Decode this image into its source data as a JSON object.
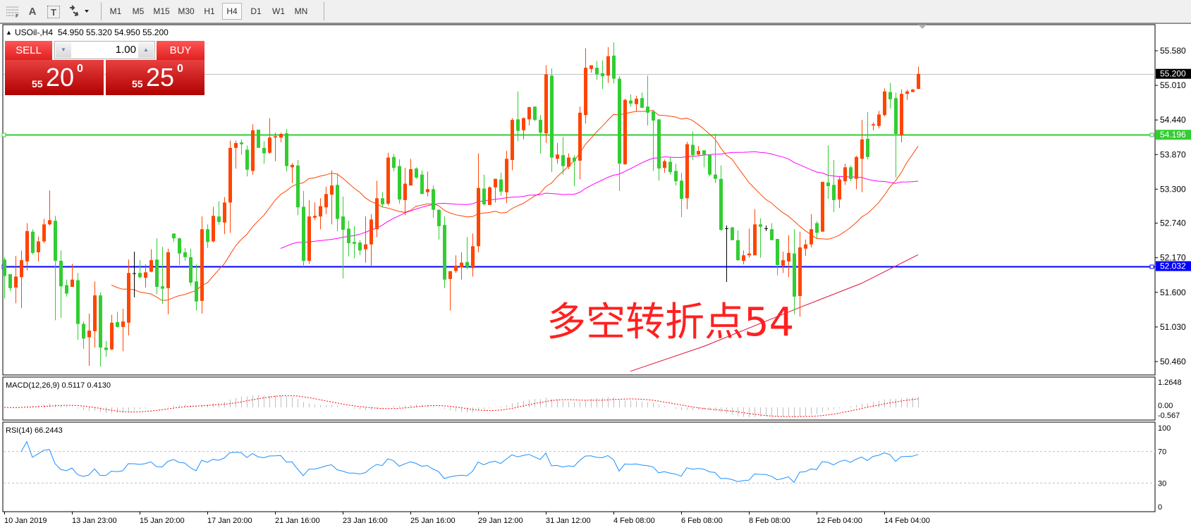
{
  "toolbar": {
    "tools": [
      {
        "icon": "fibonacci-lines-icon"
      },
      {
        "icon": "text-icon",
        "glyph": "A"
      },
      {
        "icon": "text-label-icon",
        "glyph": "T"
      },
      {
        "icon": "arrows-dropdown-icon"
      }
    ],
    "timeframes": [
      "M1",
      "M5",
      "M15",
      "M30",
      "H1",
      "H4",
      "D1",
      "W1",
      "MN"
    ],
    "active_timeframe": "H4"
  },
  "header": {
    "arrow": "▲",
    "symbol": "USOil-,H4",
    "ohlc": "54.950 55.320 54.950 55.200"
  },
  "trade_panel": {
    "sell_label": "SELL",
    "buy_label": "BUY",
    "lot": "1.00",
    "sell_price": {
      "big": "55",
      "main": "20",
      "sup": "0"
    },
    "buy_price": {
      "big": "55",
      "main": "25",
      "sup": "0"
    }
  },
  "annotation": "多空转折点54",
  "colors": {
    "up_candle": "#FF4500",
    "down_candle": "#32CD32",
    "doji": "#000000",
    "ma_fast": "#FF4500",
    "ma_slow": "#FF00FF",
    "ma_long": "#DC143C",
    "resistance_line": "#32CD32",
    "support_line": "#0000FF",
    "bid_line": "#C0C0C0",
    "rsi_line": "#1E90FF",
    "macd_hist": "#C0C0C0",
    "macd_signal": "#FF0000"
  },
  "chart_data": {
    "type": "candlestick",
    "symbol": "USOil-",
    "timeframe": "H4",
    "price_axis_ticks": [
      "55.580",
      "55.010",
      "54.440",
      "53.870",
      "53.300",
      "52.740",
      "52.170",
      "51.600",
      "51.030",
      "50.460"
    ],
    "price_range": [
      50.24,
      55.9
    ],
    "horizontal_lines": [
      {
        "name": "bid",
        "value": 55.2,
        "label": "55.200"
      },
      {
        "name": "resistance",
        "value": 54.196,
        "label": "54.196"
      },
      {
        "name": "support",
        "value": 52.032,
        "label": "52.032"
      }
    ],
    "time_labels": [
      "10 Jan 2019",
      "13 Jan 23:00",
      "15 Jan 20:00",
      "17 Jan 20:00",
      "21 Jan 16:00",
      "23 Jan 16:00",
      "25 Jan 16:00",
      "29 Jan 12:00",
      "31 Jan 12:00",
      "4 Feb 08:00",
      "6 Feb 08:00",
      "8 Feb 08:00",
      "12 Feb 04:00",
      "14 Feb 04:00"
    ],
    "ohlc": [
      [
        52.14,
        52.18,
        51.5,
        51.87
      ],
      [
        51.9,
        51.9,
        51.62,
        51.67
      ],
      [
        51.68,
        52.2,
        51.42,
        51.86
      ],
      [
        51.85,
        52.29,
        51.34,
        52.13
      ],
      [
        52.11,
        52.74,
        51.96,
        52.61
      ],
      [
        52.6,
        52.64,
        52.22,
        52.25
      ],
      [
        52.26,
        52.52,
        52.11,
        52.44
      ],
      [
        52.44,
        52.81,
        52.41,
        52.72
      ],
      [
        52.72,
        53.28,
        52.7,
        52.79
      ],
      [
        52.78,
        52.86,
        51.14,
        52.12
      ],
      [
        52.12,
        52.29,
        51.18,
        51.7
      ],
      [
        51.72,
        51.81,
        51.53,
        51.58
      ],
      [
        51.69,
        52.07,
        51.69,
        51.81
      ],
      [
        51.8,
        51.92,
        50.82,
        51.08
      ],
      [
        51.08,
        51.12,
        50.67,
        50.84
      ],
      [
        50.86,
        51.25,
        50.39,
        50.97
      ],
      [
        50.96,
        51.78,
        50.69,
        51.55
      ],
      [
        51.55,
        51.6,
        50.38,
        50.69
      ],
      [
        50.69,
        50.8,
        50.54,
        50.65
      ],
      [
        50.66,
        51.23,
        50.65,
        51.1
      ],
      [
        51.11,
        51.28,
        51.02,
        51.03
      ],
      [
        51.03,
        51.33,
        50.63,
        51.12
      ],
      [
        51.1,
        52.14,
        50.89,
        51.92
      ],
      [
        51.91,
        52.27,
        51.52,
        51.91
      ],
      [
        51.92,
        52.13,
        51.83,
        51.85
      ],
      [
        51.84,
        52.06,
        51.68,
        51.93
      ],
      [
        51.94,
        52.31,
        51.93,
        52.13
      ],
      [
        52.14,
        52.49,
        51.57,
        51.69
      ],
      [
        51.7,
        52.35,
        51.41,
        51.66
      ],
      [
        51.67,
        52.32,
        51.24,
        52.26
      ],
      [
        52.57,
        52.57,
        52.43,
        52.49
      ],
      [
        52.49,
        52.5,
        52.05,
        52.24
      ],
      [
        52.26,
        52.33,
        52.12,
        52.18
      ],
      [
        52.18,
        52.32,
        51.71,
        51.76
      ],
      [
        51.78,
        52.06,
        51.3,
        51.45
      ],
      [
        51.46,
        52.85,
        51.25,
        52.64
      ],
      [
        52.64,
        52.72,
        52.33,
        52.43
      ],
      [
        52.44,
        53.01,
        52.42,
        52.86
      ],
      [
        52.85,
        53.1,
        52.71,
        52.76
      ],
      [
        52.75,
        53.17,
        52.56,
        53.08
      ],
      [
        53.08,
        54.1,
        52.58,
        53.98
      ],
      [
        53.98,
        54.1,
        53.64,
        54.06
      ],
      [
        54.07,
        54.12,
        53.87,
        54.04
      ],
      [
        53.95,
        54.02,
        53.51,
        53.62
      ],
      [
        53.6,
        54.37,
        53.54,
        54.27
      ],
      [
        54.28,
        54.28,
        53.98,
        53.98
      ],
      [
        53.98,
        54.09,
        53.72,
        53.89
      ],
      [
        53.9,
        54.47,
        53.88,
        54.15
      ],
      [
        54.15,
        54.23,
        53.76,
        54.17
      ],
      [
        54.15,
        54.23,
        54.07,
        54.21
      ],
      [
        54.22,
        54.29,
        53.59,
        53.68
      ],
      [
        53.66,
        53.73,
        53.4,
        53.7
      ],
      [
        53.69,
        53.78,
        52.87,
        53.0
      ],
      [
        53.01,
        53.27,
        52.02,
        52.12
      ],
      [
        52.12,
        53.12,
        52.07,
        52.85
      ],
      [
        52.83,
        53.08,
        52.79,
        52.86
      ],
      [
        52.85,
        53.15,
        52.64,
        53.02
      ],
      [
        53.0,
        53.34,
        52.89,
        53.22
      ],
      [
        53.21,
        53.61,
        52.72,
        53.36
      ],
      [
        53.37,
        53.56,
        52.61,
        52.81
      ],
      [
        52.85,
        53.18,
        51.83,
        52.63
      ],
      [
        52.65,
        52.78,
        52.19,
        52.41
      ],
      [
        52.43,
        52.69,
        52.16,
        52.4
      ],
      [
        52.42,
        52.46,
        52.21,
        52.29
      ],
      [
        52.31,
        52.85,
        52.09,
        52.39
      ],
      [
        52.39,
        52.89,
        52.04,
        52.8
      ],
      [
        52.64,
        53.44,
        52.51,
        53.15
      ],
      [
        53.15,
        53.25,
        53.0,
        53.05
      ],
      [
        53.06,
        53.9,
        53.03,
        53.82
      ],
      [
        53.83,
        53.88,
        53.59,
        53.65
      ],
      [
        53.68,
        53.79,
        53.06,
        53.13
      ],
      [
        53.12,
        53.65,
        52.87,
        53.39
      ],
      [
        53.36,
        53.8,
        53.36,
        53.63
      ],
      [
        53.64,
        53.66,
        53.47,
        53.49
      ],
      [
        53.54,
        53.61,
        53.22,
        53.22
      ],
      [
        53.25,
        53.59,
        53.18,
        53.3
      ],
      [
        53.3,
        53.36,
        52.83,
        52.96
      ],
      [
        52.96,
        52.97,
        52.47,
        52.69
      ],
      [
        52.71,
        52.85,
        51.67,
        51.81
      ],
      [
        51.82,
        51.95,
        51.3,
        51.95
      ],
      [
        51.95,
        52.21,
        51.92,
        52.04
      ],
      [
        52.01,
        52.26,
        51.81,
        52.09
      ],
      [
        52.1,
        52.51,
        51.98,
        52.02
      ],
      [
        52.0,
        52.57,
        51.86,
        52.36
      ],
      [
        52.36,
        53.89,
        52.26,
        53.32
      ],
      [
        53.31,
        53.54,
        53.03,
        53.05
      ],
      [
        53.04,
        53.35,
        53.04,
        53.33
      ],
      [
        53.33,
        53.47,
        53.08,
        53.47
      ],
      [
        53.46,
        53.57,
        53.19,
        53.26
      ],
      [
        53.25,
        53.93,
        53.07,
        53.8
      ],
      [
        53.78,
        54.47,
        53.61,
        54.44
      ],
      [
        54.45,
        54.91,
        54.09,
        54.26
      ],
      [
        54.27,
        54.48,
        54.12,
        54.47
      ],
      [
        54.45,
        54.66,
        54.35,
        54.65
      ],
      [
        54.66,
        54.66,
        54.42,
        54.44
      ],
      [
        54.44,
        54.52,
        53.89,
        54.23
      ],
      [
        54.22,
        55.34,
        54.06,
        55.19
      ],
      [
        55.17,
        55.29,
        53.58,
        53.82
      ],
      [
        53.8,
        54.06,
        53.72,
        53.87
      ],
      [
        53.86,
        54.16,
        53.54,
        53.68
      ],
      [
        53.67,
        53.89,
        53.63,
        53.82
      ],
      [
        53.82,
        53.86,
        53.35,
        53.76
      ],
      [
        53.77,
        54.66,
        53.46,
        54.56
      ],
      [
        54.52,
        55.62,
        54.38,
        55.3
      ],
      [
        55.28,
        55.34,
        55.22,
        55.34
      ],
      [
        55.3,
        55.41,
        55.1,
        55.19
      ],
      [
        55.21,
        55.42,
        54.95,
        55.16
      ],
      [
        55.17,
        55.64,
        55.05,
        55.49
      ],
      [
        55.5,
        55.72,
        55.04,
        55.12
      ],
      [
        55.12,
        55.16,
        53.27,
        53.72
      ],
      [
        53.71,
        54.79,
        53.7,
        54.77
      ],
      [
        54.76,
        54.86,
        54.66,
        54.71
      ],
      [
        54.7,
        54.84,
        54.58,
        54.79
      ],
      [
        54.8,
        54.89,
        54.64,
        54.64
      ],
      [
        54.66,
        55.17,
        54.35,
        54.56
      ],
      [
        54.58,
        54.61,
        53.6,
        54.43
      ],
      [
        54.45,
        54.45,
        53.44,
        53.64
      ],
      [
        53.65,
        53.79,
        53.57,
        53.76
      ],
      [
        53.75,
        53.82,
        53.54,
        53.58
      ],
      [
        53.6,
        53.72,
        53.36,
        53.43
      ],
      [
        53.44,
        53.57,
        52.84,
        53.14
      ],
      [
        53.15,
        54.08,
        52.97,
        54.04
      ],
      [
        54.03,
        54.25,
        53.78,
        53.86
      ],
      [
        53.87,
        54.01,
        53.85,
        53.93
      ],
      [
        53.94,
        53.94,
        53.66,
        53.87
      ],
      [
        53.87,
        53.87,
        53.51,
        53.54
      ],
      [
        53.54,
        54.21,
        53.4,
        53.47
      ],
      [
        53.47,
        53.69,
        52.61,
        52.63
      ],
      [
        52.65,
        52.7,
        51.77,
        52.65
      ],
      [
        52.67,
        52.68,
        52.46,
        52.46
      ],
      [
        52.46,
        52.62,
        52.12,
        52.13
      ],
      [
        52.12,
        52.29,
        52.06,
        52.21
      ],
      [
        52.21,
        52.65,
        52.17,
        52.24
      ],
      [
        52.21,
        52.97,
        52.21,
        52.72
      ],
      [
        52.72,
        52.82,
        52.17,
        52.68
      ],
      [
        52.65,
        52.7,
        52.61,
        52.65
      ],
      [
        52.64,
        52.74,
        52.46,
        52.46
      ],
      [
        52.48,
        52.48,
        51.88,
        52.05
      ],
      [
        52.04,
        52.27,
        51.92,
        52.13
      ],
      [
        52.11,
        52.54,
        51.85,
        52.25
      ],
      [
        52.24,
        52.64,
        51.24,
        51.53
      ],
      [
        51.54,
        52.6,
        51.2,
        52.34
      ],
      [
        52.32,
        52.47,
        52.2,
        52.39
      ],
      [
        52.39,
        52.89,
        52.34,
        52.64
      ],
      [
        52.74,
        52.77,
        52.49,
        52.58
      ],
      [
        52.6,
        53.42,
        52.6,
        53.42
      ],
      [
        53.41,
        54.02,
        53.14,
        53.35
      ],
      [
        53.37,
        53.78,
        52.92,
        53.12
      ],
      [
        53.13,
        53.51,
        52.99,
        53.46
      ],
      [
        53.43,
        53.72,
        53.37,
        53.66
      ],
      [
        53.66,
        53.69,
        53.43,
        53.47
      ],
      [
        53.47,
        53.85,
        53.3,
        53.83
      ],
      [
        53.8,
        54.44,
        53.25,
        54.12
      ],
      [
        54.13,
        54.57,
        53.79,
        53.83
      ],
      [
        54.35,
        54.4,
        54.27,
        54.37
      ],
      [
        54.34,
        54.59,
        54.3,
        54.53
      ],
      [
        54.52,
        54.96,
        54.5,
        54.91
      ],
      [
        54.9,
        55.05,
        54.63,
        54.78
      ],
      [
        54.8,
        54.89,
        53.49,
        54.21
      ],
      [
        54.19,
        54.94,
        54.07,
        54.87
      ],
      [
        54.87,
        54.94,
        54.77,
        54.91
      ],
      [
        54.9,
        54.95,
        54.9,
        54.94
      ],
      [
        54.95,
        55.32,
        54.95,
        55.2
      ]
    ],
    "long_ma_readings": [
      [
        111,
        50.3
      ],
      [
        124,
        50.71
      ],
      [
        141,
        51.35
      ],
      [
        152,
        51.75
      ],
      [
        162,
        52.22
      ]
    ],
    "macd": {
      "label": "MACD(12,26,9) 0.5117 0.4130",
      "ticks": [
        "1.2648",
        "0.00",
        "-0.567"
      ],
      "range": [
        -0.567,
        1.2648
      ]
    },
    "rsi": {
      "label": "RSI(14) 66.2443",
      "ticks": [
        "100",
        "70",
        "30",
        "0"
      ],
      "levels": [
        70,
        30
      ],
      "range": [
        0,
        100
      ]
    }
  }
}
